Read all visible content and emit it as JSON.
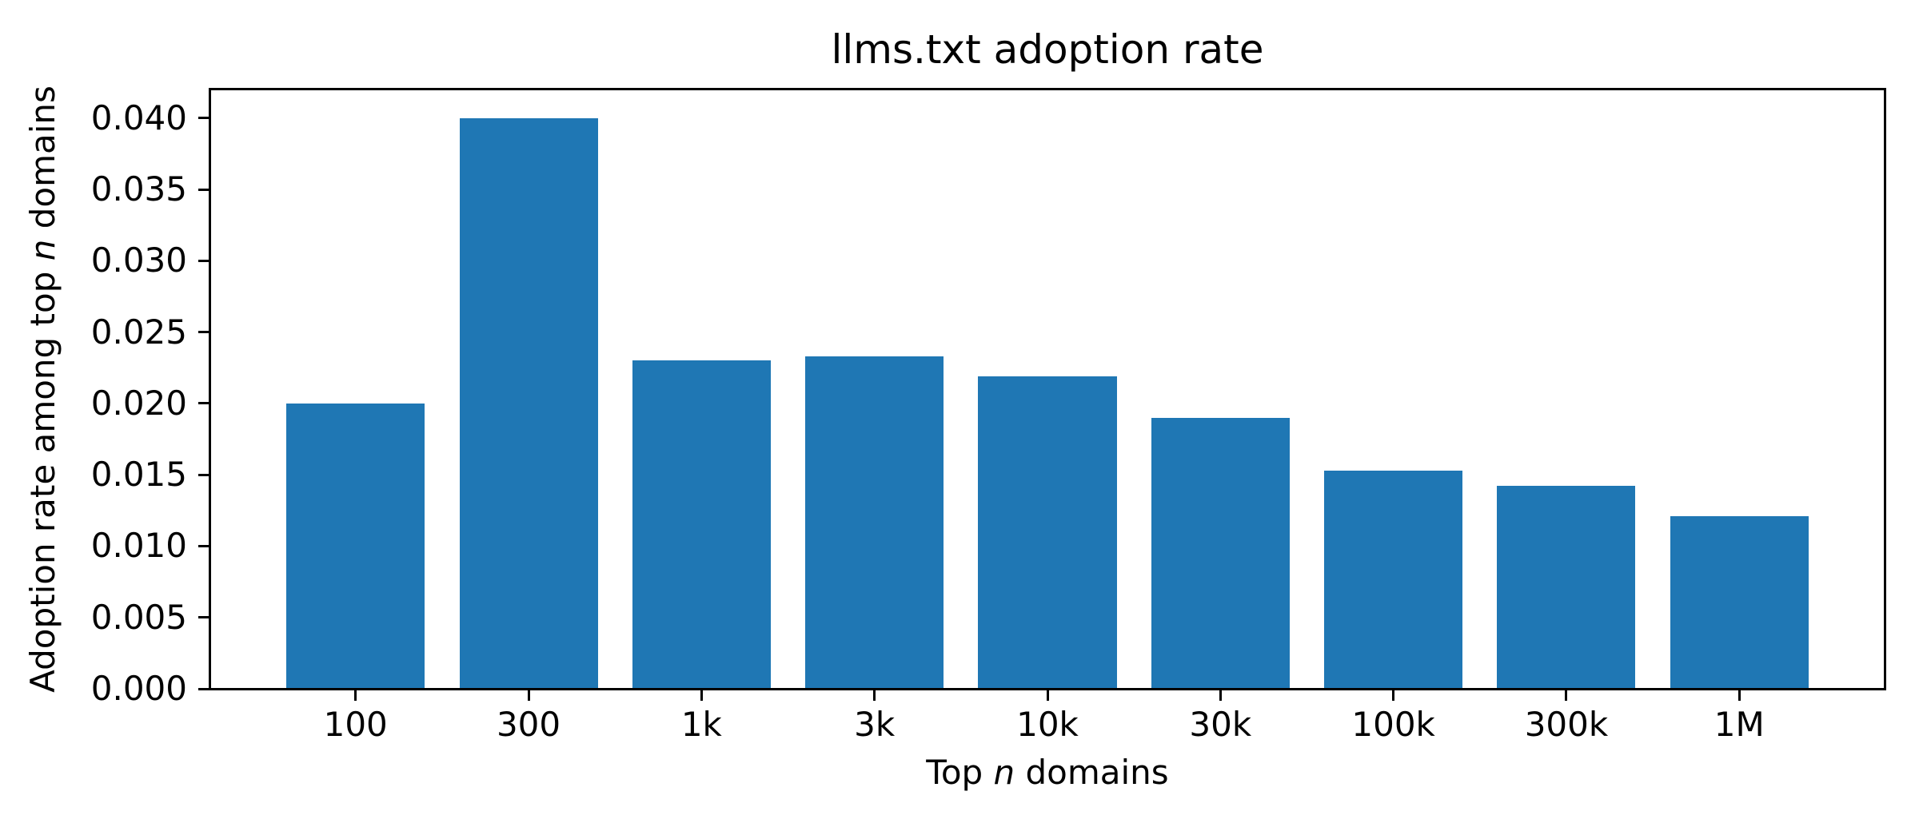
{
  "chart_data": {
    "type": "bar",
    "title": "llms.txt adoption rate",
    "categories": [
      "100",
      "300",
      "1k",
      "3k",
      "10k",
      "30k",
      "100k",
      "300k",
      "1M"
    ],
    "values": [
      0.02,
      0.04,
      0.023,
      0.0233,
      0.0219,
      0.019,
      0.0153,
      0.0142,
      0.0121
    ],
    "xlabel": "Top n domains",
    "ylabel": "Adoption rate among top n domains",
    "xlabel_parts": [
      "Top ",
      "n",
      " domains"
    ],
    "ylabel_parts": [
      "Adoption rate among top ",
      "n",
      " domains"
    ],
    "ytick_labels": [
      "0.000",
      "0.005",
      "0.010",
      "0.015",
      "0.020",
      "0.025",
      "0.030",
      "0.035",
      "0.040"
    ],
    "ylim": [
      0,
      0.042
    ],
    "bar_width_fraction": 0.8,
    "bar_color": "#1f77b4",
    "axis_color": "#000000",
    "background": "#ffffff",
    "grid": false,
    "legend": false
  }
}
